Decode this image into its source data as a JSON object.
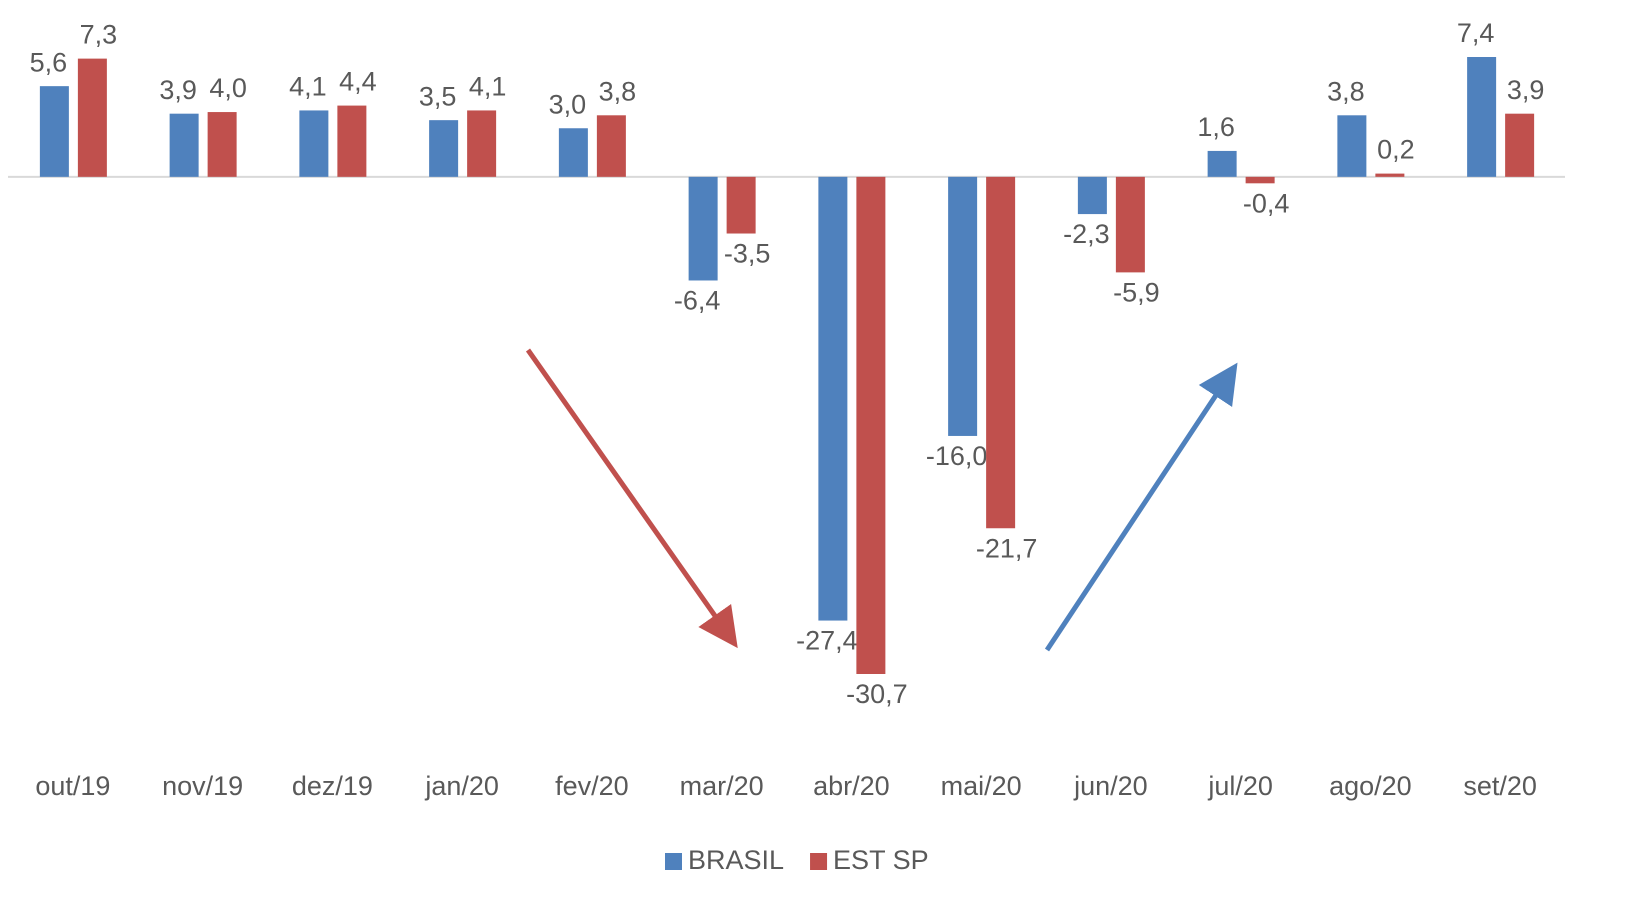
{
  "chart_data": {
    "type": "bar",
    "categories": [
      "out/19",
      "nov/19",
      "dez/19",
      "jan/20",
      "fev/20",
      "mar/20",
      "abr/20",
      "mai/20",
      "jun/20",
      "jul/20",
      "ago/20",
      "set/20"
    ],
    "series": [
      {
        "name": "BRASIL",
        "color": "#4f81bd",
        "values": [
          5.6,
          3.9,
          4.1,
          3.5,
          3.0,
          -6.4,
          -27.4,
          -16.0,
          -2.3,
          1.6,
          3.8,
          7.4
        ],
        "value_labels": [
          "5,6",
          "3,9",
          "4,1",
          "3,5",
          "3,0",
          "-6,4",
          "-27,4",
          "-16,0",
          "-2,3",
          "1,6",
          "3,8",
          "7,4"
        ]
      },
      {
        "name": "EST SP",
        "color": "#c0504d",
        "values": [
          7.3,
          4.0,
          4.4,
          4.1,
          3.8,
          -3.5,
          -30.7,
          -21.7,
          -5.9,
          -0.4,
          0.2,
          3.9
        ],
        "value_labels": [
          "7,3",
          "4,0",
          "4,4",
          "4,1",
          "3,8",
          "-3,5",
          "-30,7",
          "-21,7",
          "-5,9",
          "-0,4",
          "0,2",
          "3,9"
        ]
      }
    ],
    "legend": "bottom"
  }
}
